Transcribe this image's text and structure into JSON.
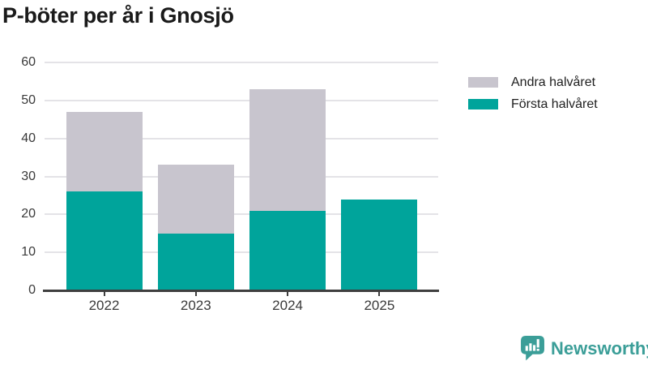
{
  "page": {
    "title": "P-böter per år i Gnosjö"
  },
  "legend": {
    "items": [
      {
        "label": "Andra halvåret",
        "color": "#c8c5ce"
      },
      {
        "label": "Första halvåret",
        "color": "#00a49b"
      }
    ]
  },
  "footer": {
    "brand": "Newsworthy",
    "brand_color": "#3b9e98"
  },
  "chart_data": {
    "type": "bar",
    "stacked": true,
    "title": "P-böter per år i Gnosjö",
    "categories": [
      "2022",
      "2023",
      "2024",
      "2025"
    ],
    "series": [
      {
        "name": "Första halvåret",
        "color": "#00a49b",
        "values": [
          26,
          15,
          21,
          24
        ]
      },
      {
        "name": "Andra halvåret",
        "color": "#c8c5ce",
        "values": [
          21,
          18,
          32,
          0
        ]
      }
    ],
    "totals": [
      47,
      33,
      53,
      24
    ],
    "xlabel": "",
    "ylabel": "",
    "ylim": [
      0,
      60
    ],
    "yticks": [
      0,
      10,
      20,
      30,
      40,
      50,
      60
    ],
    "grid": true,
    "legend_position": "top-right",
    "colors": {
      "axis": "#3f3f3f",
      "gridline": "#e4e3e7",
      "tick_text": "#3a3a3a"
    }
  }
}
